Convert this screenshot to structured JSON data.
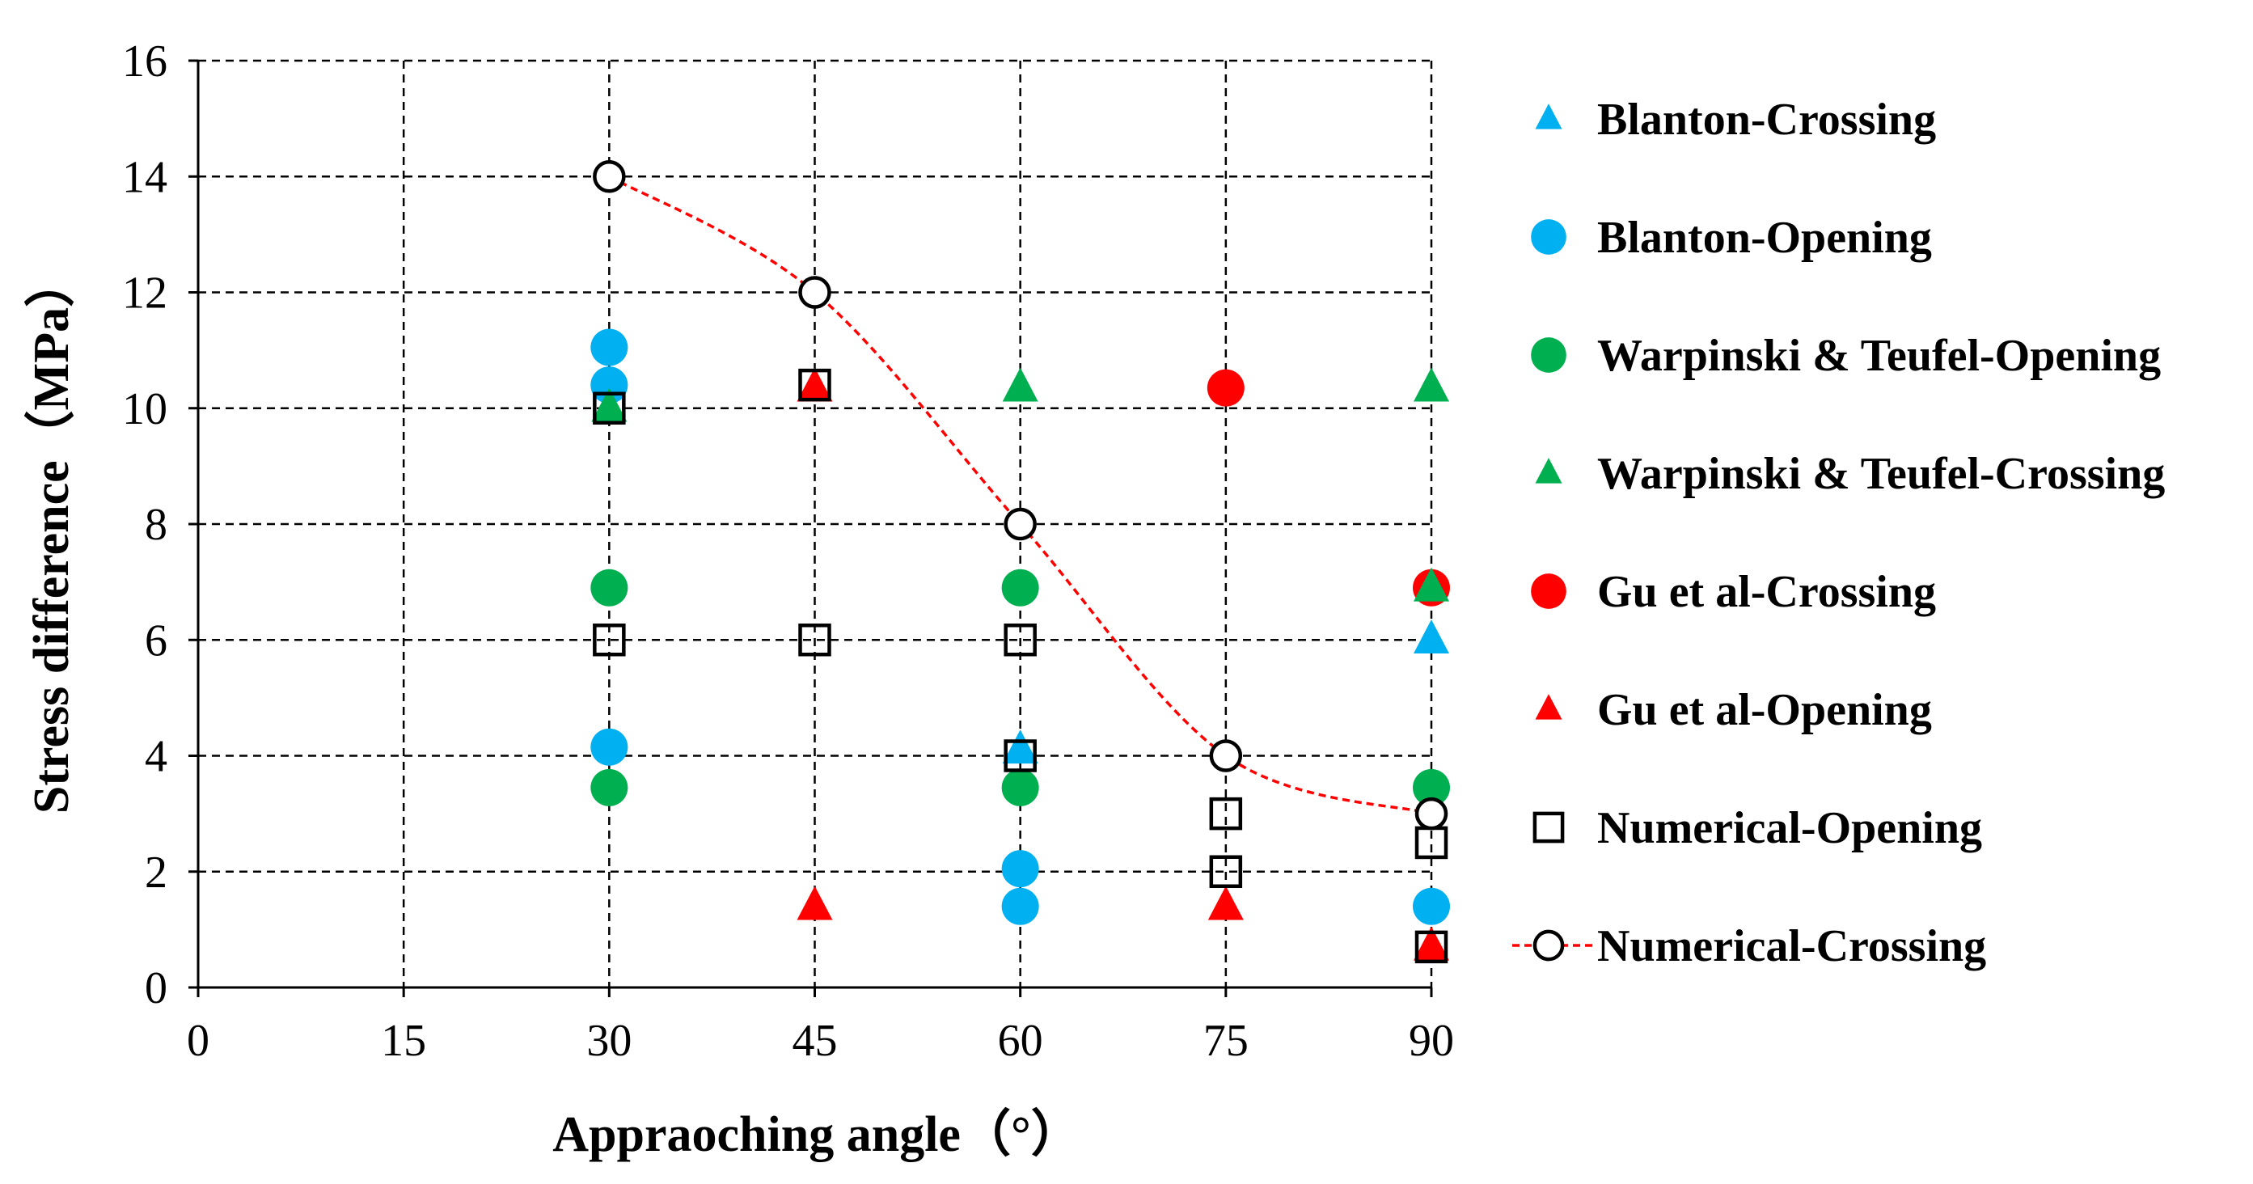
{
  "chart_data": {
    "type": "scatter",
    "xlabel": "Appraoching angle（°）",
    "ylabel": "Stress difference（MPa）",
    "xlim": [
      0,
      90
    ],
    "ylim": [
      0,
      16
    ],
    "xticks": [
      "0",
      "15",
      "30",
      "45",
      "60",
      "75",
      "90"
    ],
    "yticks": [
      "0",
      "2",
      "4",
      "6",
      "8",
      "10",
      "12",
      "14",
      "16"
    ],
    "grid": true,
    "legend_position": "right",
    "series": [
      {
        "name": "Blanton-Crossing",
        "marker": "triangle",
        "color": "#00b0f0",
        "points": [
          [
            60,
            4.1
          ],
          [
            90,
            6.0
          ]
        ]
      },
      {
        "name": "Blanton-Opening",
        "marker": "circle",
        "color": "#00b0f0",
        "points": [
          [
            30,
            11.05
          ],
          [
            30,
            10.4
          ],
          [
            30,
            4.15
          ],
          [
            60,
            2.05
          ],
          [
            60,
            1.4
          ],
          [
            90,
            1.4
          ]
        ]
      },
      {
        "name": "Warpinski & Teufel-Opening",
        "marker": "circle",
        "color": "#00b050",
        "points": [
          [
            30,
            6.9
          ],
          [
            30,
            3.45
          ],
          [
            60,
            6.9
          ],
          [
            60,
            3.45
          ],
          [
            90,
            3.45
          ]
        ]
      },
      {
        "name": "Warpinski & Teufel-Crossing",
        "marker": "triangle",
        "color": "#00b050",
        "points": [
          [
            30,
            10.0
          ],
          [
            60,
            10.35
          ],
          [
            90,
            10.35
          ],
          [
            90,
            6.9
          ]
        ]
      },
      {
        "name": "Gu et al-Crossing",
        "marker": "circle",
        "color": "#ff0000",
        "points": [
          [
            75,
            10.35
          ],
          [
            90,
            6.9
          ]
        ]
      },
      {
        "name": "Gu et al-Opening",
        "marker": "triangle",
        "color": "#ff0000",
        "points": [
          [
            45,
            10.35
          ],
          [
            45,
            1.4
          ],
          [
            75,
            1.4
          ],
          [
            90,
            0.7
          ]
        ]
      },
      {
        "name": "Numerical-Opening",
        "marker": "square-open",
        "color": "#000000",
        "points": [
          [
            30,
            10.0
          ],
          [
            30,
            6.0
          ],
          [
            45,
            10.4
          ],
          [
            45,
            6.0
          ],
          [
            60,
            6.0
          ],
          [
            60,
            4.0
          ],
          [
            75,
            3.0
          ],
          [
            75,
            2.0
          ],
          [
            90,
            2.5
          ],
          [
            90,
            0.7
          ]
        ]
      },
      {
        "name": "Numerical-Crossing",
        "marker": "circle-open-line",
        "color": "#000000",
        "line_color": "#ff0000",
        "points": [
          [
            30,
            14.0
          ],
          [
            45,
            12.0
          ],
          [
            60,
            8.0
          ],
          [
            75,
            4.0
          ],
          [
            90,
            3.0
          ]
        ]
      }
    ]
  }
}
